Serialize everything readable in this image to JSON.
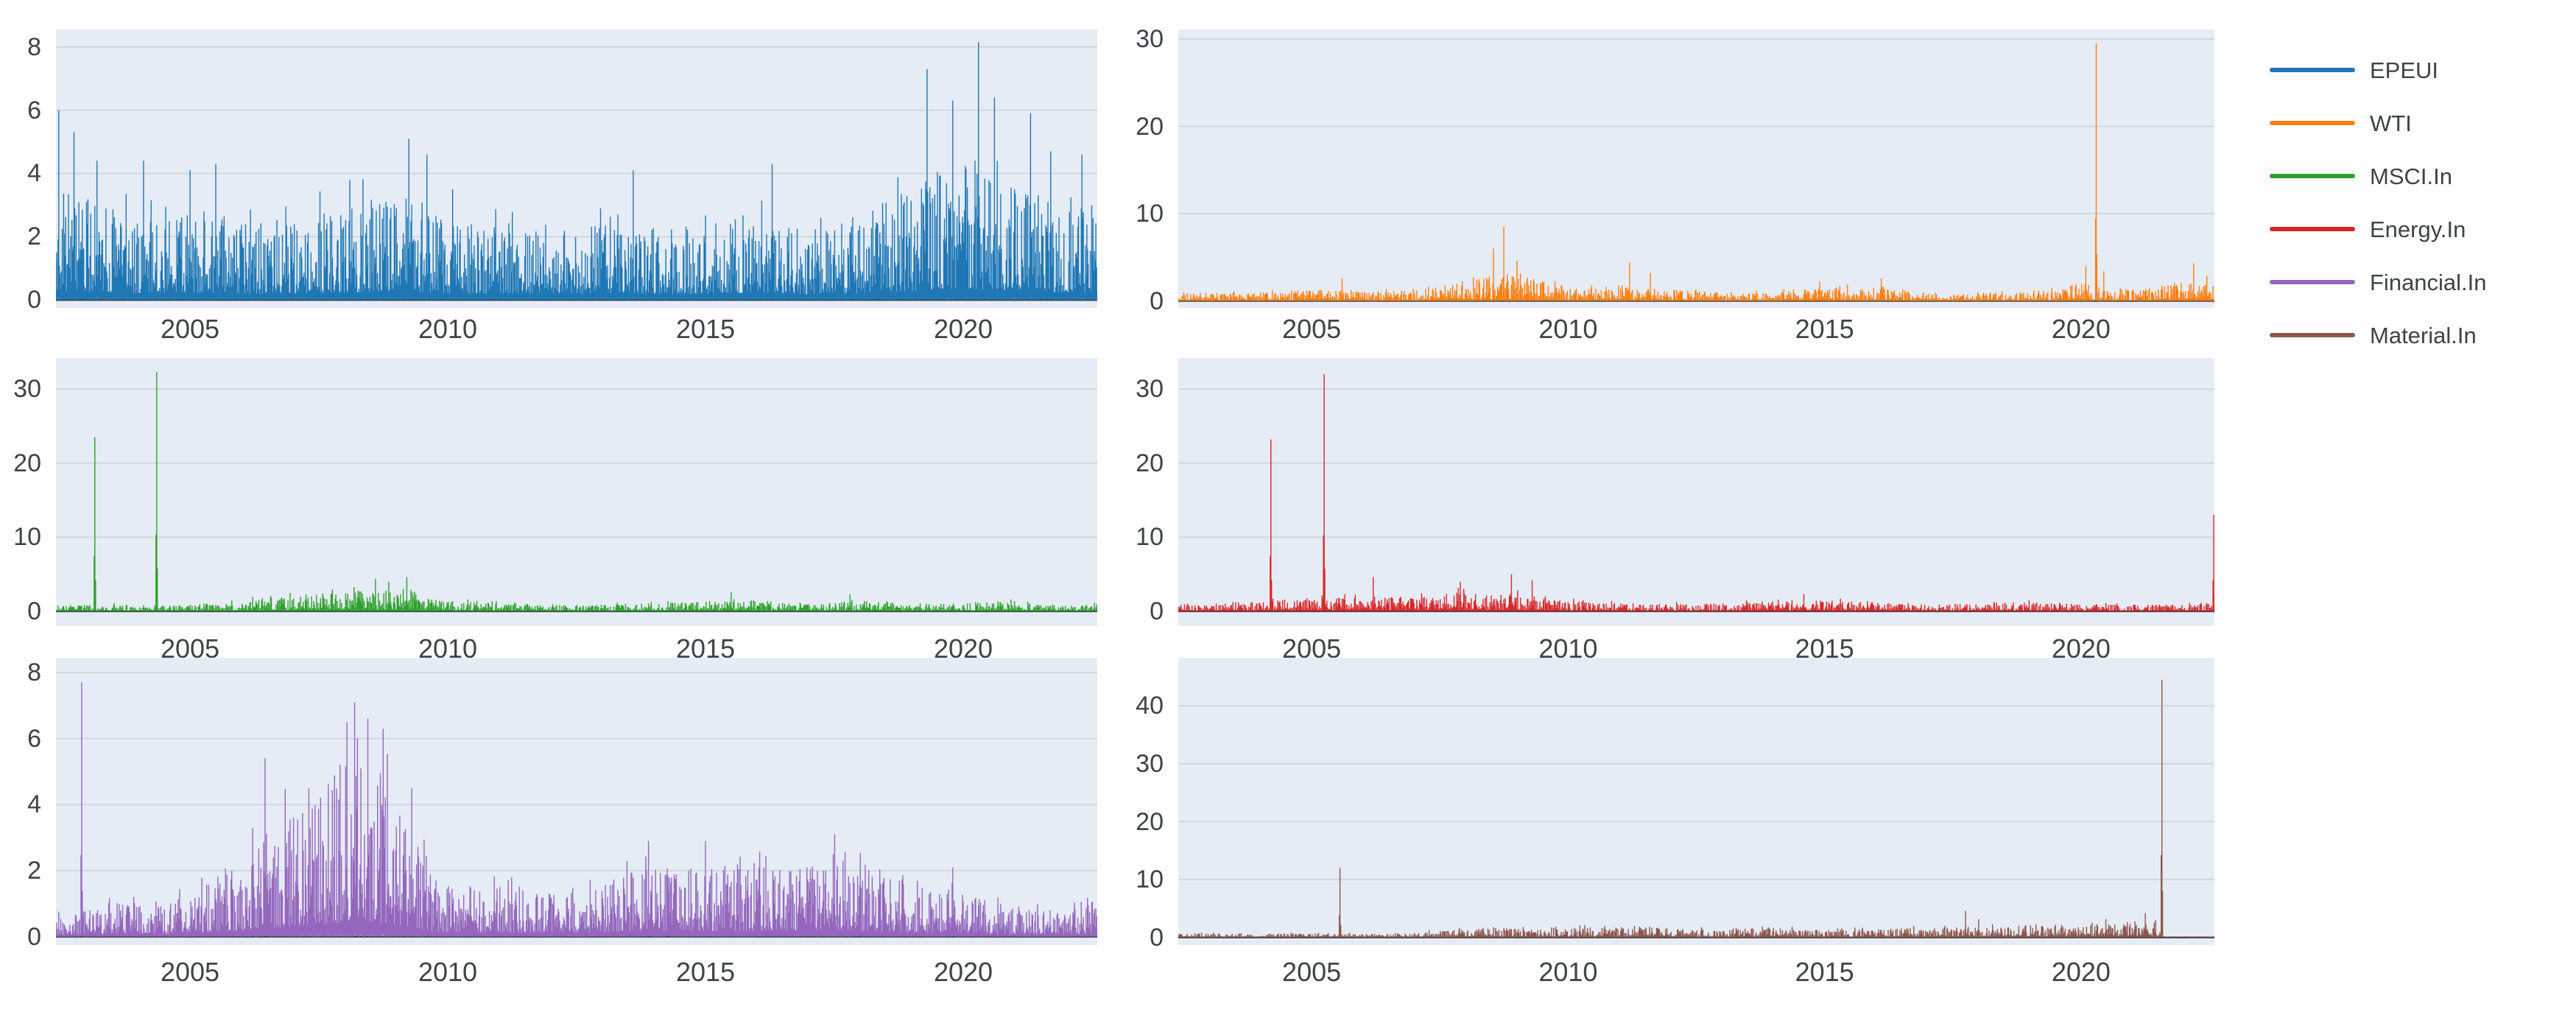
{
  "figure": {
    "background_color": "#ffffff",
    "plot_background_color": "#e6ecf5",
    "grid_color": "#d4d7da",
    "zero_line_color": "#3c4046",
    "tick_label_color": "#3d4347"
  },
  "legend": {
    "items": [
      {
        "label": "EPEUI",
        "color": "#1f77b4"
      },
      {
        "label": "WTI",
        "color": "#ff7f0e"
      },
      {
        "label": "MSCI.In",
        "color": "#2ca02c"
      },
      {
        "label": "Energy.In",
        "color": "#d62728"
      },
      {
        "label": "Financial.In",
        "color": "#9467bd"
      },
      {
        "label": "Material.In",
        "color": "#8c564b"
      }
    ]
  },
  "chart_data": [
    {
      "type": "line",
      "name": "EPEUI",
      "color": "#1f77b4",
      "row": 0,
      "col": 0,
      "seed": 11,
      "xlim": [
        2002.4,
        2022.6
      ],
      "xticks": [
        2005,
        2010,
        2015,
        2020
      ],
      "ylim": [
        -0.25,
        8.55
      ],
      "yticks": [
        0,
        2,
        4,
        6,
        8
      ],
      "envelope": {
        "x": [
          2002.4,
          2003,
          2004,
          2005,
          2006,
          2007,
          2008,
          2009,
          2010,
          2011,
          2012,
          2013,
          2014,
          2015,
          2016,
          2017,
          2018,
          2019,
          2019.5,
          2020,
          2020.5,
          2021,
          2022,
          2022.6
        ],
        "typ": [
          3.6,
          3.2,
          2.6,
          2.8,
          2.4,
          2.6,
          3.0,
          3.4,
          2.6,
          2.4,
          2.2,
          2.6,
          2.2,
          2.4,
          2.6,
          2.2,
          2.6,
          3.6,
          4.2,
          4.4,
          4.0,
          3.6,
          3.0,
          3.0
        ]
      },
      "spikes": [
        [
          2002.45,
          6.0
        ],
        [
          2002.75,
          5.3
        ],
        [
          2003.2,
          4.4
        ],
        [
          2004.1,
          4.4
        ],
        [
          2005.0,
          4.1
        ],
        [
          2005.5,
          4.3
        ],
        [
          2008.1,
          3.8
        ],
        [
          2009.25,
          5.1
        ],
        [
          2009.6,
          4.6
        ],
        [
          2010.1,
          3.5
        ],
        [
          2013.6,
          4.1
        ],
        [
          2016.3,
          4.3
        ],
        [
          2019.3,
          7.3
        ],
        [
          2019.8,
          6.3
        ],
        [
          2020.3,
          8.15
        ],
        [
          2020.6,
          6.4
        ],
        [
          2021.3,
          5.9
        ],
        [
          2021.7,
          4.7
        ],
        [
          2022.3,
          4.6
        ]
      ]
    },
    {
      "type": "line",
      "name": "WTI",
      "color": "#ff7f0e",
      "row": 0,
      "col": 1,
      "seed": 22,
      "xlim": [
        2002.4,
        2022.6
      ],
      "xticks": [
        2005,
        2010,
        2015,
        2020
      ],
      "ylim": [
        -0.8,
        31.1
      ],
      "yticks": [
        0,
        10,
        20,
        30
      ],
      "envelope": {
        "x": [
          2002.4,
          2004,
          2005,
          2006,
          2007,
          2008,
          2008.7,
          2009.3,
          2010,
          2011,
          2012,
          2013,
          2014,
          2014.8,
          2015.5,
          2016,
          2017,
          2018,
          2019,
          2020,
          2020.5,
          2021,
          2022,
          2022.6
        ],
        "typ": [
          0.9,
          1.0,
          1.3,
          1.1,
          1.2,
          2.2,
          3.0,
          2.6,
          1.4,
          1.8,
          1.3,
          1.0,
          0.9,
          1.5,
          1.6,
          1.5,
          0.8,
          0.8,
          1.0,
          2.0,
          1.6,
          1.2,
          2.2,
          2.0
        ]
      },
      "spikes": [
        [
          2005.6,
          2.6
        ],
        [
          2008.55,
          6.0
        ],
        [
          2008.75,
          8.5
        ],
        [
          2009.0,
          4.6
        ],
        [
          2011.2,
          4.4
        ],
        [
          2011.6,
          3.2
        ],
        [
          2014.9,
          2.2
        ],
        [
          2016.1,
          2.6
        ],
        [
          2020.1,
          4.0
        ],
        [
          2020.3,
          29.5
        ],
        [
          2020.45,
          3.4
        ],
        [
          2022.2,
          4.3
        ],
        [
          2022.45,
          2.9
        ]
      ]
    },
    {
      "type": "line",
      "name": "MSCI.In",
      "color": "#2ca02c",
      "row": 1,
      "col": 0,
      "seed": 33,
      "xlim": [
        2002.4,
        2022.6
      ],
      "xticks": [
        2005,
        2010,
        2015,
        2020
      ],
      "ylim": [
        -2.0,
        34.2
      ],
      "yticks": [
        0,
        10,
        20,
        30
      ],
      "envelope": {
        "x": [
          2002.4,
          2003.5,
          2004.5,
          2005.5,
          2006,
          2006.5,
          2007,
          2007.5,
          2008,
          2008.5,
          2009,
          2009.5,
          2010,
          2011,
          2012,
          2013,
          2014,
          2015,
          2015.6,
          2016,
          2017,
          2017.8,
          2018.5,
          2019,
          2020,
          2020.8,
          2021.5,
          2022.6
        ],
        "typ": [
          0.8,
          0.9,
          0.8,
          1.1,
          1.4,
          1.8,
          2.2,
          2.4,
          2.6,
          3.0,
          2.8,
          2.2,
          1.4,
          1.1,
          0.8,
          0.9,
          1.1,
          1.3,
          1.6,
          1.2,
          0.9,
          1.5,
          1.3,
          0.9,
          1.1,
          1.4,
          0.9,
          0.9
        ]
      },
      "spikes": [
        [
          2003.15,
          23.5
        ],
        [
          2004.35,
          32.3
        ],
        [
          2008.6,
          4.4
        ],
        [
          2008.85,
          4.0
        ],
        [
          2009.2,
          4.6
        ],
        [
          2015.5,
          2.6
        ],
        [
          2017.8,
          2.3
        ]
      ]
    },
    {
      "type": "line",
      "name": "Energy.In",
      "color": "#d62728",
      "row": 1,
      "col": 1,
      "seed": 44,
      "xlim": [
        2002.4,
        2022.6
      ],
      "xticks": [
        2005,
        2010,
        2015,
        2020
      ],
      "ylim": [
        -2.0,
        34.2
      ],
      "yticks": [
        0,
        10,
        20,
        30
      ],
      "envelope": {
        "x": [
          2002.4,
          2003,
          2004,
          2005,
          2006,
          2006.5,
          2007,
          2007.5,
          2008,
          2008.5,
          2009,
          2009.5,
          2010,
          2011,
          2012,
          2013,
          2014,
          2015,
          2016,
          2017,
          2018,
          2019,
          2020,
          2021,
          2022,
          2022.6
        ],
        "typ": [
          0.9,
          1.1,
          1.3,
          1.6,
          2.2,
          2.0,
          1.8,
          2.4,
          2.6,
          2.2,
          2.4,
          2.0,
          1.4,
          1.1,
          1.0,
          1.1,
          1.3,
          1.5,
          1.2,
          0.9,
          1.1,
          1.3,
          1.0,
          0.9,
          0.9,
          1.2
        ]
      },
      "spikes": [
        [
          2004.2,
          23.2
        ],
        [
          2005.25,
          32.0
        ],
        [
          2006.2,
          4.6
        ],
        [
          2007.9,
          4.0
        ],
        [
          2008.9,
          5.0
        ],
        [
          2009.3,
          4.2
        ],
        [
          2014.6,
          2.3
        ],
        [
          2022.58,
          13.0
        ]
      ]
    },
    {
      "type": "line",
      "name": "Financial.In",
      "color": "#9467bd",
      "row": 2,
      "col": 0,
      "seed": 55,
      "xlim": [
        2002.4,
        2022.6
      ],
      "xticks": [
        2005,
        2010,
        2015,
        2020
      ],
      "ylim": [
        -0.25,
        8.45
      ],
      "yticks": [
        0,
        2,
        4,
        6,
        8
      ],
      "envelope": {
        "x": [
          2002.4,
          2003,
          2003.5,
          2004,
          2004.5,
          2005,
          2005.5,
          2006,
          2006.4,
          2006.8,
          2007.2,
          2007.6,
          2008,
          2008.3,
          2008.6,
          2009,
          2009.4,
          2009.8,
          2010.5,
          2011,
          2012,
          2013,
          2013.5,
          2014,
          2014.5,
          2015,
          2015.5,
          2016,
          2016.5,
          2017,
          2017.5,
          2018,
          2018.5,
          2019,
          2019.5,
          2020,
          2020.5,
          2021,
          2021.5,
          2022,
          2022.6
        ],
        "typ": [
          0.7,
          0.8,
          1.0,
          1.1,
          0.9,
          1.5,
          1.8,
          2.0,
          3.2,
          3.6,
          4.0,
          4.4,
          5.6,
          6.2,
          5.4,
          4.4,
          3.2,
          1.6,
          1.6,
          1.5,
          1.3,
          1.6,
          2.0,
          2.2,
          2.0,
          2.2,
          2.0,
          2.2,
          2.0,
          2.2,
          2.6,
          2.2,
          1.8,
          1.6,
          1.4,
          1.3,
          1.1,
          0.9,
          0.8,
          0.9,
          1.1
        ]
      },
      "spikes": [
        [
          2002.9,
          7.7
        ],
        [
          2006.45,
          5.4
        ],
        [
          2007.3,
          4.5
        ],
        [
          2008.05,
          6.5
        ],
        [
          2008.2,
          7.1
        ],
        [
          2008.45,
          6.6
        ],
        [
          2008.75,
          6.3
        ],
        [
          2009.3,
          4.5
        ],
        [
          2013.9,
          2.9
        ],
        [
          2015.0,
          2.9
        ],
        [
          2017.5,
          3.1
        ],
        [
          2019.8,
          2.1
        ]
      ]
    },
    {
      "type": "line",
      "name": "Material.In",
      "color": "#8c564b",
      "row": 2,
      "col": 1,
      "seed": 66,
      "xlim": [
        2002.4,
        2022.6
      ],
      "xticks": [
        2005,
        2010,
        2015,
        2020
      ],
      "ylim": [
        -1.3,
        48.3
      ],
      "yticks": [
        0,
        10,
        20,
        30,
        40
      ],
      "envelope": {
        "x": [
          2002.4,
          2003,
          2004,
          2005,
          2006,
          2007,
          2007.5,
          2008,
          2008.5,
          2009,
          2009.5,
          2010,
          2010.5,
          2011,
          2011.5,
          2012,
          2013,
          2013.5,
          2014,
          2014.5,
          2015,
          2016,
          2016.5,
          2017,
          2017.5,
          2018,
          2018.5,
          2019,
          2019.5,
          2020,
          2020.5,
          2021,
          2021.4,
          2021.62,
          2022,
          2022.6
        ],
        "typ": [
          0.6,
          0.7,
          0.6,
          0.7,
          0.6,
          0.8,
          1.2,
          1.4,
          1.8,
          1.6,
          1.4,
          1.6,
          1.8,
          1.6,
          2.0,
          1.6,
          1.3,
          1.6,
          1.8,
          1.4,
          1.3,
          1.4,
          1.6,
          1.6,
          1.8,
          2.0,
          1.8,
          1.8,
          2.2,
          2.4,
          2.6,
          2.8,
          2.6,
          0.18,
          0.18,
          0.18
        ]
      },
      "spikes": [
        [
          2005.55,
          12.0
        ],
        [
          2017.75,
          4.6
        ],
        [
          2018.0,
          3.2
        ],
        [
          2021.25,
          4.2
        ],
        [
          2021.45,
          3.0
        ],
        [
          2021.58,
          44.5
        ]
      ]
    }
  ]
}
